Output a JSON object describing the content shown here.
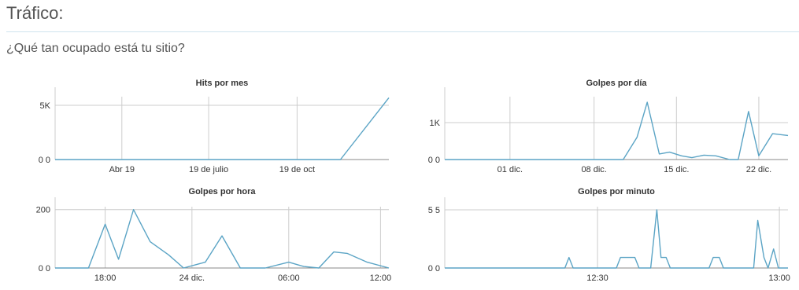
{
  "page": {
    "title": "Tráfico:",
    "subtitle": "¿Qué tan ocupado está tu sitio?"
  },
  "colors": {
    "line": "#5ba4c5",
    "grid": "#cccccc",
    "axis": "#888888",
    "text": "#333333"
  },
  "chart_data": [
    {
      "type": "line",
      "title": "Hits por mes",
      "xlabel": "",
      "ylabel": "",
      "ylim": [
        0,
        5800
      ],
      "y_ticks": [
        {
          "value": 0,
          "label": "0 0"
        },
        {
          "value": 5000,
          "label": "5K"
        }
      ],
      "x_ticks": [
        {
          "pos": 0.2,
          "label": "Abr 19"
        },
        {
          "pos": 0.46,
          "label": "19 de julio"
        },
        {
          "pos": 0.725,
          "label": "19 de oct"
        }
      ],
      "values": [
        0,
        0,
        0,
        0,
        0,
        0,
        0,
        0,
        0,
        0,
        0,
        0,
        0,
        0,
        0,
        0,
        5700
      ],
      "x_positions": [
        0,
        0.06,
        0.12,
        0.18,
        0.24,
        0.3,
        0.36,
        0.42,
        0.48,
        0.54,
        0.6,
        0.66,
        0.72,
        0.78,
        0.84,
        0.855,
        1.0
      ],
      "grid": true
    },
    {
      "type": "line",
      "title": "Golpes por día",
      "xlabel": "",
      "ylabel": "",
      "ylim": [
        0,
        1700
      ],
      "y_ticks": [
        {
          "value": 0,
          "label": "0 0"
        },
        {
          "value": 1000,
          "label": "1K"
        }
      ],
      "x_ticks": [
        {
          "pos": 0.19,
          "label": "01 dic."
        },
        {
          "pos": 0.435,
          "label": "08 dic."
        },
        {
          "pos": 0.675,
          "label": "15 dic."
        },
        {
          "pos": 0.915,
          "label": "22 dic."
        }
      ],
      "values": [
        0,
        0,
        0,
        0,
        0,
        0,
        0,
        0,
        0,
        0,
        0,
        0,
        0,
        0,
        0,
        0,
        0,
        0,
        0,
        0,
        0,
        0,
        0,
        0,
        0,
        0,
        0,
        0,
        0,
        0,
        0,
        0,
        0,
        0,
        0,
        0,
        0,
        0,
        0,
        0,
        0,
        0,
        0,
        0,
        0,
        0,
        0,
        0,
        0,
        0,
        0,
        0,
        0,
        0,
        0,
        0,
        0,
        0,
        0,
        0,
        0,
        0,
        0,
        0,
        0,
        0,
        0,
        0,
        0,
        0,
        0,
        0,
        0,
        0,
        0,
        0,
        0,
        0,
        0,
        0,
        0,
        0,
        0,
        0,
        0,
        0,
        0,
        0,
        0,
        0,
        0,
        0,
        0,
        0,
        0,
        0,
        0,
        0,
        0,
        0,
        0,
        0,
        0,
        0,
        0,
        0,
        0,
        0,
        0,
        0,
        0,
        0,
        0,
        0,
        0,
        0,
        0,
        0,
        0,
        0,
        0,
        0,
        0,
        0,
        0,
        0,
        0,
        0,
        0,
        0,
        0,
        0,
        0,
        0,
        0,
        0,
        0,
        0,
        0,
        0,
        0,
        0,
        0,
        0,
        0,
        0,
        0,
        0,
        0,
        0,
        0,
        0,
        0,
        0,
        0,
        0,
        0,
        0,
        0,
        0,
        0,
        0,
        0,
        0,
        0,
        0,
        0,
        0,
        0,
        0,
        0,
        0,
        0,
        0,
        0,
        0,
        0,
        0,
        0,
        0,
        0,
        0,
        0,
        0,
        0,
        0,
        0,
        0,
        0,
        0,
        0,
        0,
        0,
        0,
        0,
        0,
        0,
        0,
        0,
        0,
        0,
        0,
        0,
        0,
        0,
        0,
        0,
        0,
        0,
        0,
        0,
        0,
        0,
        0,
        0,
        0,
        0,
        0,
        0,
        0,
        0,
        0,
        0,
        0,
        0,
        0,
        0,
        0,
        0,
        0,
        0,
        0,
        0,
        0,
        0,
        0,
        0,
        0,
        0,
        0,
        0,
        0,
        0,
        0,
        0,
        0,
        0,
        0,
        0,
        0,
        0,
        0,
        0,
        0,
        0,
        0,
        0,
        0,
        0,
        0,
        0,
        0,
        0,
        0,
        0,
        0,
        0,
        0,
        0,
        0,
        0,
        0,
        0,
        0,
        0,
        0,
        0,
        0,
        0,
        0,
        0,
        0,
        0,
        0,
        0,
        0,
        0,
        0,
        0,
        0,
        0,
        0,
        0,
        0,
        0,
        0,
        0,
        0,
        0,
        0,
        0,
        0,
        0,
        0,
        0,
        0,
        0,
        0,
        0,
        0,
        0
      ],
      "points": [
        [
          0,
          0
        ],
        [
          0.52,
          0
        ],
        [
          0.56,
          600
        ],
        [
          0.59,
          1550
        ],
        [
          0.625,
          150
        ],
        [
          0.655,
          200
        ],
        [
          0.69,
          100
        ],
        [
          0.72,
          50
        ],
        [
          0.755,
          120
        ],
        [
          0.79,
          100
        ],
        [
          0.83,
          0
        ],
        [
          0.855,
          0
        ],
        [
          0.885,
          1300
        ],
        [
          0.915,
          100
        ],
        [
          0.955,
          700
        ],
        [
          1.0,
          650
        ]
      ],
      "grid": true
    },
    {
      "type": "line",
      "title": "Golpes por hora",
      "xlabel": "",
      "ylabel": "",
      "ylim": [
        0,
        210
      ],
      "y_ticks": [
        {
          "value": 0,
          "label": "0 0"
        },
        {
          "value": 200,
          "label": "200"
        }
      ],
      "x_ticks": [
        {
          "pos": 0.15,
          "label": "18:00"
        },
        {
          "pos": 0.41,
          "label": "24 dic."
        },
        {
          "pos": 0.7,
          "label": "06:00"
        },
        {
          "pos": 0.975,
          "label": "12:00"
        }
      ],
      "points": [
        [
          0,
          0
        ],
        [
          0.1,
          0
        ],
        [
          0.15,
          150
        ],
        [
          0.19,
          30
        ],
        [
          0.235,
          200
        ],
        [
          0.285,
          90
        ],
        [
          0.34,
          45
        ],
        [
          0.385,
          0
        ],
        [
          0.45,
          20
        ],
        [
          0.5,
          110
        ],
        [
          0.555,
          0
        ],
        [
          0.63,
          0
        ],
        [
          0.7,
          20
        ],
        [
          0.745,
          5
        ],
        [
          0.79,
          0
        ],
        [
          0.835,
          55
        ],
        [
          0.875,
          50
        ],
        [
          0.935,
          20
        ],
        [
          1.0,
          0
        ]
      ],
      "grid": true
    },
    {
      "type": "line",
      "title": "Golpes por minuto",
      "xlabel": "",
      "ylabel": "",
      "ylim": [
        0,
        5.8
      ],
      "y_ticks": [
        {
          "value": 0,
          "label": "0 0"
        },
        {
          "value": 5.5,
          "label": "5 5"
        }
      ],
      "x_ticks": [
        {
          "pos": 0.445,
          "label": "12:30"
        },
        {
          "pos": 0.975,
          "label": "13:00"
        }
      ],
      "points": [
        [
          0,
          0
        ],
        [
          0.35,
          0
        ],
        [
          0.362,
          1
        ],
        [
          0.374,
          0
        ],
        [
          0.5,
          0
        ],
        [
          0.512,
          1
        ],
        [
          0.554,
          1
        ],
        [
          0.566,
          0
        ],
        [
          0.6,
          0
        ],
        [
          0.618,
          5.5
        ],
        [
          0.63,
          1
        ],
        [
          0.645,
          1
        ],
        [
          0.657,
          0
        ],
        [
          0.77,
          0
        ],
        [
          0.782,
          1
        ],
        [
          0.8,
          1
        ],
        [
          0.812,
          0
        ],
        [
          0.9,
          0
        ],
        [
          0.912,
          4.5
        ],
        [
          0.93,
          1
        ],
        [
          0.942,
          0
        ],
        [
          0.958,
          1.8
        ],
        [
          0.972,
          0
        ],
        [
          1.0,
          0
        ]
      ],
      "grid": true
    }
  ]
}
